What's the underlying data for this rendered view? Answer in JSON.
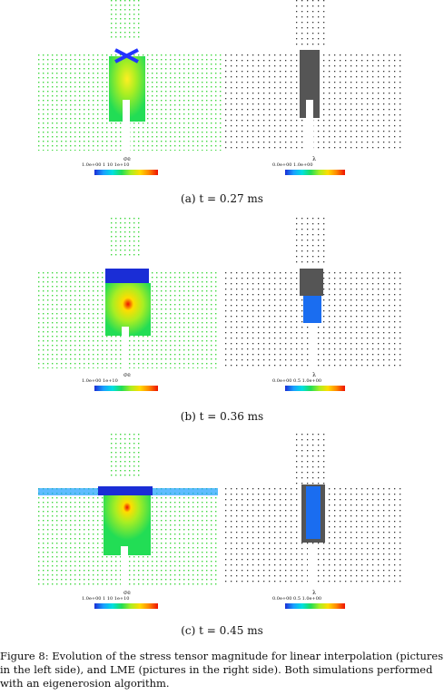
{
  "panels": [
    {
      "id": "a",
      "subcaption": "(a) t = 0.27 ms",
      "left_colorbar": {
        "symbol": "σe",
        "ticks": "1.0e+00  1  10  1e+10"
      },
      "right_colorbar": {
        "symbol": "λ",
        "ticks": "0.0e+00        1.0e+00"
      }
    },
    {
      "id": "b",
      "subcaption": "(b) t = 0.36 ms",
      "left_colorbar": {
        "symbol": "σe",
        "ticks": "1.0e+00        1e+10"
      },
      "right_colorbar": {
        "symbol": "λ",
        "ticks": "0.0e+00   0.5   1.0e+00"
      }
    },
    {
      "id": "c",
      "subcaption": "(c) t = 0.45 ms",
      "left_colorbar": {
        "symbol": "σe",
        "ticks": "1.0e+00  1  10  1e+10"
      },
      "right_colorbar": {
        "symbol": "λ",
        "ticks": "0.0e+00   0.5   1.0e+00"
      }
    }
  ],
  "caption": "Figure 8: Evolution of the stress tensor magnitude for linear interpolation (pictures in the left side), and LME (pictures in the right side). Both simulations performed with an eigenerosion algorithm."
}
